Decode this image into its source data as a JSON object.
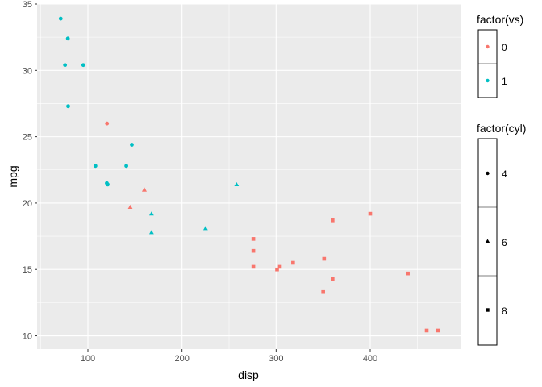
{
  "chart_data": {
    "type": "scatter",
    "xlabel": "disp",
    "ylabel": "mpg",
    "xlim": [
      46,
      496
    ],
    "ylim": [
      9,
      35
    ],
    "x_ticks": [
      100,
      200,
      300,
      400
    ],
    "y_ticks": [
      10,
      15,
      20,
      25,
      30,
      35
    ],
    "grid": true,
    "colors": {
      "vs0": "#F8766D",
      "vs1": "#00BFC4",
      "panel": "#EBEBEB",
      "grid": "#FFFFFF"
    },
    "legend_placement": "right",
    "legends": [
      {
        "title": "factor(vs)",
        "entries": [
          {
            "label": "0",
            "color": "#F8766D"
          },
          {
            "label": "1",
            "color": "#00BFC4"
          }
        ]
      },
      {
        "title": "factor(cyl)",
        "entries": [
          {
            "label": "4",
            "shape": "circle"
          },
          {
            "label": "6",
            "shape": "triangle"
          },
          {
            "label": "8",
            "shape": "square"
          }
        ]
      }
    ],
    "points": [
      {
        "disp": 160,
        "mpg": 21.0,
        "vs": 0,
        "cyl": 6
      },
      {
        "disp": 160,
        "mpg": 21.0,
        "vs": 0,
        "cyl": 6
      },
      {
        "disp": 108,
        "mpg": 22.8,
        "vs": 1,
        "cyl": 4
      },
      {
        "disp": 258,
        "mpg": 21.4,
        "vs": 1,
        "cyl": 6
      },
      {
        "disp": 360,
        "mpg": 18.7,
        "vs": 0,
        "cyl": 8
      },
      {
        "disp": 225,
        "mpg": 18.1,
        "vs": 1,
        "cyl": 6
      },
      {
        "disp": 360,
        "mpg": 14.3,
        "vs": 0,
        "cyl": 8
      },
      {
        "disp": 146.7,
        "mpg": 24.4,
        "vs": 1,
        "cyl": 4
      },
      {
        "disp": 140.8,
        "mpg": 22.8,
        "vs": 1,
        "cyl": 4
      },
      {
        "disp": 167.6,
        "mpg": 19.2,
        "vs": 1,
        "cyl": 6
      },
      {
        "disp": 167.6,
        "mpg": 17.8,
        "vs": 1,
        "cyl": 6
      },
      {
        "disp": 275.8,
        "mpg": 16.4,
        "vs": 0,
        "cyl": 8
      },
      {
        "disp": 275.8,
        "mpg": 17.3,
        "vs": 0,
        "cyl": 8
      },
      {
        "disp": 275.8,
        "mpg": 15.2,
        "vs": 0,
        "cyl": 8
      },
      {
        "disp": 472,
        "mpg": 10.4,
        "vs": 0,
        "cyl": 8
      },
      {
        "disp": 460,
        "mpg": 10.4,
        "vs": 0,
        "cyl": 8
      },
      {
        "disp": 440,
        "mpg": 14.7,
        "vs": 0,
        "cyl": 8
      },
      {
        "disp": 78.7,
        "mpg": 32.4,
        "vs": 1,
        "cyl": 4
      },
      {
        "disp": 75.7,
        "mpg": 30.4,
        "vs": 1,
        "cyl": 4
      },
      {
        "disp": 71.1,
        "mpg": 33.9,
        "vs": 1,
        "cyl": 4
      },
      {
        "disp": 120.1,
        "mpg": 21.5,
        "vs": 1,
        "cyl": 4
      },
      {
        "disp": 318,
        "mpg": 15.5,
        "vs": 0,
        "cyl": 8
      },
      {
        "disp": 304,
        "mpg": 15.2,
        "vs": 0,
        "cyl": 8
      },
      {
        "disp": 350,
        "mpg": 13.3,
        "vs": 0,
        "cyl": 8
      },
      {
        "disp": 400,
        "mpg": 19.2,
        "vs": 0,
        "cyl": 8
      },
      {
        "disp": 79,
        "mpg": 27.3,
        "vs": 1,
        "cyl": 4
      },
      {
        "disp": 120.3,
        "mpg": 26.0,
        "vs": 0,
        "cyl": 4
      },
      {
        "disp": 95.1,
        "mpg": 30.4,
        "vs": 1,
        "cyl": 4
      },
      {
        "disp": 351,
        "mpg": 15.8,
        "vs": 0,
        "cyl": 8
      },
      {
        "disp": 145,
        "mpg": 19.7,
        "vs": 0,
        "cyl": 6
      },
      {
        "disp": 301,
        "mpg": 15.0,
        "vs": 0,
        "cyl": 8
      },
      {
        "disp": 121,
        "mpg": 21.4,
        "vs": 1,
        "cyl": 4
      }
    ]
  }
}
